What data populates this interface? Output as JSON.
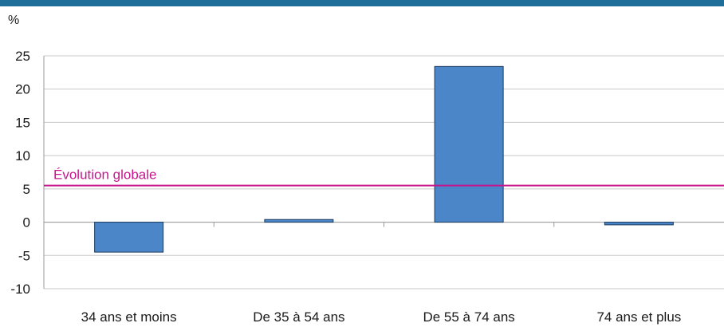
{
  "chart_data": {
    "type": "bar",
    "ylabel": "%",
    "categories": [
      "34 ans et moins",
      "De 35 à 54 ans",
      "De 55 à 74 ans",
      "74 ans et plus"
    ],
    "values": [
      -4.5,
      0.4,
      23.4,
      -0.4
    ],
    "ylim": [
      -10,
      25
    ],
    "yticks": [
      25,
      20,
      15,
      10,
      5,
      0,
      -5,
      -10
    ],
    "grid": true,
    "legend": "none",
    "reference_line": {
      "label": "Évolution globale",
      "value": 5.5
    }
  },
  "colors": {
    "bar_fill": "#4a86c8",
    "bar_stroke": "#1a3a5e",
    "reference_line": "#c8148c",
    "gridline": "#c8c8c8",
    "top_band": "#1f6e99"
  }
}
